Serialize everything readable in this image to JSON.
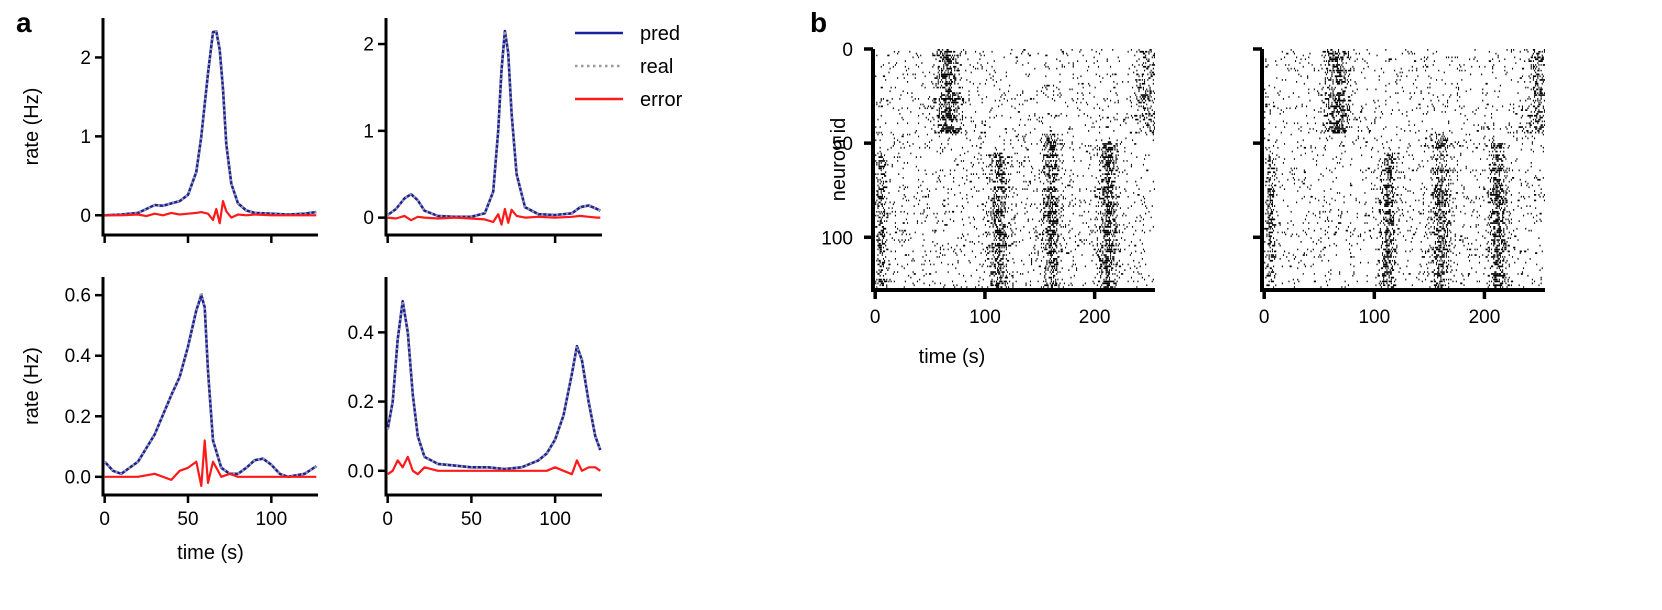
{
  "panel_labels": [
    "a",
    "b"
  ],
  "colors": {
    "pred": "#1a1f9e",
    "real": "#9a9a9a",
    "error": "#ff1a1a",
    "spike": "#000000",
    "axis": "#000000"
  },
  "legend": [
    {
      "label": "pred",
      "style": "solid",
      "color": "#1a1f9e"
    },
    {
      "label": "real",
      "style": "dotted",
      "color": "#9a9a9a"
    },
    {
      "label": "error",
      "style": "solid",
      "color": "#ff1a1a"
    }
  ],
  "chart_data": [
    {
      "type": "line",
      "panel": "a",
      "position": "top-left",
      "title": "",
      "xlabel": "",
      "ylabel": "rate (Hz)",
      "xlim": [
        -1,
        128
      ],
      "ylim": [
        -0.25,
        2.5
      ],
      "xticks": [
        0,
        50,
        100
      ],
      "xtick_labels": [
        "",
        "",
        ""
      ],
      "yticks": [
        0,
        1,
        2
      ],
      "ytick_labels": [
        "0",
        "1",
        "2"
      ],
      "x": [
        0,
        10,
        20,
        25,
        30,
        35,
        40,
        45,
        50,
        55,
        58,
        62,
        65,
        67,
        69,
        71,
        73,
        76,
        80,
        85,
        90,
        100,
        110,
        120,
        127
      ],
      "series": [
        {
          "name": "pred",
          "values": [
            0,
            0.01,
            0.03,
            0.08,
            0.13,
            0.12,
            0.15,
            0.18,
            0.26,
            0.55,
            1.0,
            1.8,
            2.32,
            2.33,
            2.1,
            1.6,
            0.9,
            0.4,
            0.15,
            0.06,
            0.03,
            0.02,
            0.01,
            0.02,
            0.04
          ]
        },
        {
          "name": "real",
          "values": [
            0,
            0.01,
            0.03,
            0.08,
            0.13,
            0.12,
            0.15,
            0.18,
            0.26,
            0.55,
            1.0,
            1.8,
            2.32,
            2.33,
            2.1,
            1.6,
            0.9,
            0.4,
            0.15,
            0.06,
            0.03,
            0.02,
            0.01,
            0.02,
            0.04
          ]
        },
        {
          "name": "error",
          "values": [
            0,
            0.0,
            0.01,
            -0.01,
            0.02,
            0.0,
            0.03,
            0.01,
            0.02,
            0.03,
            0.04,
            0.02,
            -0.06,
            0.08,
            -0.1,
            0.18,
            0.05,
            -0.03,
            0.01,
            0.0,
            0.01,
            0.0,
            0.0,
            0.0,
            0.0
          ]
        }
      ]
    },
    {
      "type": "line",
      "panel": "a",
      "position": "top-right",
      "title": "",
      "xlabel": "",
      "ylabel": "",
      "xlim": [
        -1,
        128
      ],
      "ylim": [
        -0.2,
        2.3
      ],
      "xticks": [
        0,
        50,
        100
      ],
      "xtick_labels": [
        "",
        "",
        ""
      ],
      "yticks": [
        0,
        1,
        2
      ],
      "ytick_labels": [
        "0",
        "1",
        "2"
      ],
      "x": [
        0,
        5,
        10,
        14,
        18,
        22,
        30,
        40,
        50,
        58,
        63,
        66,
        68,
        70,
        72,
        74,
        77,
        82,
        90,
        100,
        110,
        115,
        120,
        125,
        127
      ],
      "series": [
        {
          "name": "pred",
          "values": [
            0.03,
            0.1,
            0.22,
            0.27,
            0.2,
            0.08,
            0.02,
            0.01,
            0.01,
            0.05,
            0.3,
            1.0,
            1.7,
            2.15,
            1.9,
            1.2,
            0.5,
            0.12,
            0.04,
            0.03,
            0.05,
            0.12,
            0.14,
            0.1,
            0.08
          ]
        },
        {
          "name": "real",
          "values": [
            0.03,
            0.1,
            0.22,
            0.27,
            0.2,
            0.08,
            0.02,
            0.01,
            0.01,
            0.05,
            0.3,
            1.0,
            1.7,
            2.15,
            1.9,
            1.2,
            0.5,
            0.12,
            0.04,
            0.03,
            0.05,
            0.12,
            0.14,
            0.1,
            0.08
          ]
        },
        {
          "name": "error",
          "values": [
            0,
            -0.01,
            0.02,
            -0.03,
            0.01,
            0.0,
            -0.01,
            0.0,
            -0.01,
            -0.02,
            -0.05,
            0.04,
            -0.08,
            0.1,
            -0.06,
            0.09,
            0.02,
            0.0,
            0.01,
            0.0,
            0.01,
            0.02,
            0.01,
            0.0,
            0.0
          ]
        }
      ]
    },
    {
      "type": "line",
      "panel": "a",
      "position": "bottom-left",
      "title": "",
      "xlabel": "time (s)",
      "ylabel": "rate (Hz)",
      "xlim": [
        -1,
        128
      ],
      "ylim": [
        -0.06,
        0.66
      ],
      "xticks": [
        0,
        50,
        100
      ],
      "xtick_labels": [
        "0",
        "50",
        "100"
      ],
      "yticks": [
        0.0,
        0.2,
        0.4,
        0.6
      ],
      "ytick_labels": [
        "0.0",
        "0.2",
        "0.4",
        "0.6"
      ],
      "x": [
        0,
        5,
        10,
        20,
        30,
        40,
        45,
        50,
        55,
        58,
        60,
        62,
        65,
        70,
        75,
        80,
        85,
        90,
        95,
        100,
        105,
        110,
        120,
        127
      ],
      "series": [
        {
          "name": "pred",
          "values": [
            0.05,
            0.02,
            0.01,
            0.05,
            0.14,
            0.27,
            0.33,
            0.43,
            0.55,
            0.6,
            0.56,
            0.35,
            0.12,
            0.03,
            0.01,
            0.01,
            0.03,
            0.055,
            0.06,
            0.04,
            0.01,
            0.0,
            0.01,
            0.035
          ]
        },
        {
          "name": "real",
          "values": [
            0.05,
            0.02,
            0.01,
            0.05,
            0.14,
            0.27,
            0.33,
            0.43,
            0.55,
            0.61,
            0.56,
            0.35,
            0.12,
            0.03,
            0.01,
            0.01,
            0.03,
            0.055,
            0.06,
            0.04,
            0.01,
            0.0,
            0.01,
            0.035
          ]
        },
        {
          "name": "error",
          "values": [
            0,
            0.0,
            0.0,
            0.0,
            0.01,
            -0.01,
            0.02,
            0.03,
            0.05,
            -0.03,
            0.12,
            -0.02,
            0.05,
            0.0,
            0.01,
            0.0,
            0.0,
            0.0,
            0.0,
            0.0,
            0.0,
            0.0,
            0.0,
            0.0
          ]
        }
      ]
    },
    {
      "type": "line",
      "panel": "a",
      "position": "bottom-right",
      "title": "",
      "xlabel": "",
      "ylabel": "",
      "xlim": [
        -1,
        128
      ],
      "ylim": [
        -0.07,
        0.56
      ],
      "xticks": [
        0,
        50,
        100
      ],
      "xtick_labels": [
        "0",
        "50",
        "100"
      ],
      "yticks": [
        0.0,
        0.2,
        0.4
      ],
      "ytick_labels": [
        "0.0",
        "0.2",
        "0.4"
      ],
      "x": [
        0,
        3,
        6,
        9,
        12,
        15,
        18,
        22,
        30,
        40,
        50,
        60,
        70,
        80,
        90,
        95,
        100,
        105,
        110,
        113,
        116,
        120,
        124,
        127
      ],
      "series": [
        {
          "name": "pred",
          "values": [
            0.12,
            0.2,
            0.38,
            0.49,
            0.4,
            0.22,
            0.1,
            0.04,
            0.02,
            0.015,
            0.01,
            0.01,
            0.005,
            0.01,
            0.03,
            0.05,
            0.09,
            0.16,
            0.28,
            0.36,
            0.32,
            0.2,
            0.1,
            0.06
          ]
        },
        {
          "name": "real",
          "values": [
            0.12,
            0.2,
            0.38,
            0.49,
            0.4,
            0.22,
            0.1,
            0.04,
            0.02,
            0.015,
            0.01,
            0.01,
            0.005,
            0.01,
            0.03,
            0.05,
            0.09,
            0.16,
            0.28,
            0.36,
            0.32,
            0.2,
            0.1,
            0.06
          ]
        },
        {
          "name": "error",
          "values": [
            -0.01,
            0.0,
            0.03,
            0.01,
            0.04,
            0.0,
            -0.01,
            0.01,
            0.0,
            0.0,
            0.0,
            0.0,
            0.0,
            0.0,
            0.0,
            0.0,
            0.01,
            0.0,
            -0.01,
            0.03,
            0.0,
            0.01,
            0.01,
            0.0
          ]
        }
      ]
    },
    {
      "type": "heatmap",
      "panel": "b",
      "position": "left",
      "title": "",
      "xlabel": "time (s)",
      "ylabel": "neuron id",
      "xlim": [
        -2,
        255
      ],
      "ylim": [
        128,
        0
      ],
      "xticks": [
        0,
        100,
        200
      ],
      "xtick_labels": [
        "0",
        "100",
        "200"
      ],
      "yticks": [
        0,
        50,
        100
      ],
      "ytick_labels": [
        "0",
        "50",
        "100"
      ],
      "n_neurons": 128,
      "n_timebins": 255,
      "seed": 7,
      "base_density": 0.1,
      "bursts": [
        {
          "center": 66,
          "width": 9,
          "neuron_range": [
            0,
            45
          ],
          "density": 0.6
        },
        {
          "center": 112,
          "width": 7,
          "neuron_range": [
            55,
            128
          ],
          "density": 0.5
        },
        {
          "center": 160,
          "width": 7,
          "neuron_range": [
            45,
            128
          ],
          "density": 0.5
        },
        {
          "center": 212,
          "width": 7,
          "neuron_range": [
            50,
            128
          ],
          "density": 0.55
        },
        {
          "center": 5,
          "width": 4,
          "neuron_range": [
            55,
            128
          ],
          "density": 0.45
        },
        {
          "center": 248,
          "width": 8,
          "neuron_range": [
            0,
            45
          ],
          "density": 0.35
        }
      ]
    },
    {
      "type": "heatmap",
      "panel": "b",
      "position": "right",
      "title": "",
      "xlabel": "",
      "ylabel": "",
      "xlim": [
        -2,
        255
      ],
      "ylim": [
        128,
        0
      ],
      "xticks": [
        0,
        100,
        200
      ],
      "xtick_labels": [
        "0",
        "100",
        "200"
      ],
      "yticks": [
        0,
        50,
        100
      ],
      "ytick_labels": [
        "",
        "",
        ""
      ],
      "n_neurons": 128,
      "n_timebins": 255,
      "seed": 13,
      "base_density": 0.09,
      "bursts": [
        {
          "center": 66,
          "width": 9,
          "neuron_range": [
            0,
            45
          ],
          "density": 0.55
        },
        {
          "center": 112,
          "width": 7,
          "neuron_range": [
            55,
            128
          ],
          "density": 0.45
        },
        {
          "center": 160,
          "width": 7,
          "neuron_range": [
            45,
            128
          ],
          "density": 0.45
        },
        {
          "center": 212,
          "width": 7,
          "neuron_range": [
            50,
            128
          ],
          "density": 0.5
        },
        {
          "center": 5,
          "width": 4,
          "neuron_range": [
            55,
            128
          ],
          "density": 0.4
        },
        {
          "center": 248,
          "width": 8,
          "neuron_range": [
            0,
            45
          ],
          "density": 0.35
        }
      ]
    }
  ]
}
